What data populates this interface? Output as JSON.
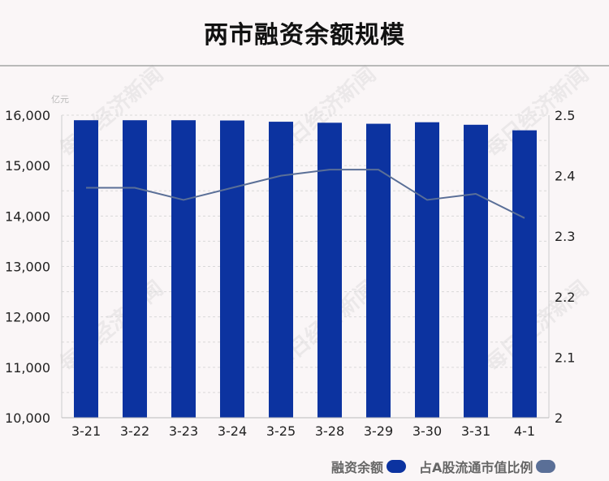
{
  "title": "两市融资余额规模",
  "watermark": "每日经济新闻",
  "colors": {
    "bar": "#0c33a0",
    "line": "#5a6f97"
  },
  "legend": {
    "bar_label": "融资余额",
    "line_label": "占A股流通市值比例"
  },
  "chart_data": {
    "type": "bar",
    "title": "两市融资余额规模",
    "ylabel": "亿元",
    "categories": [
      "3-21",
      "3-22",
      "3-23",
      "3-24",
      "3-25",
      "3-28",
      "3-29",
      "3-30",
      "3-31",
      "4-1"
    ],
    "series": [
      {
        "name": "融资余额",
        "type": "bar",
        "axis": "left",
        "values": [
          15900,
          15900,
          15900,
          15895,
          15870,
          15850,
          15830,
          15860,
          15810,
          15700
        ]
      },
      {
        "name": "占A股流通市值比例",
        "type": "line",
        "axis": "right",
        "values": [
          2.38,
          2.38,
          2.36,
          2.38,
          2.4,
          2.41,
          2.41,
          2.36,
          2.37,
          2.33
        ]
      }
    ],
    "ylim": [
      10000,
      16000
    ],
    "y2lim": [
      2,
      2.5
    ],
    "yticks": [
      "10,000",
      "11,000",
      "12,000",
      "13,000",
      "14,000",
      "15,000",
      "16,000"
    ],
    "y2ticks": [
      "2",
      "2.1",
      "2.2",
      "2.3",
      "2.4",
      "2.5"
    ],
    "grid": true
  }
}
